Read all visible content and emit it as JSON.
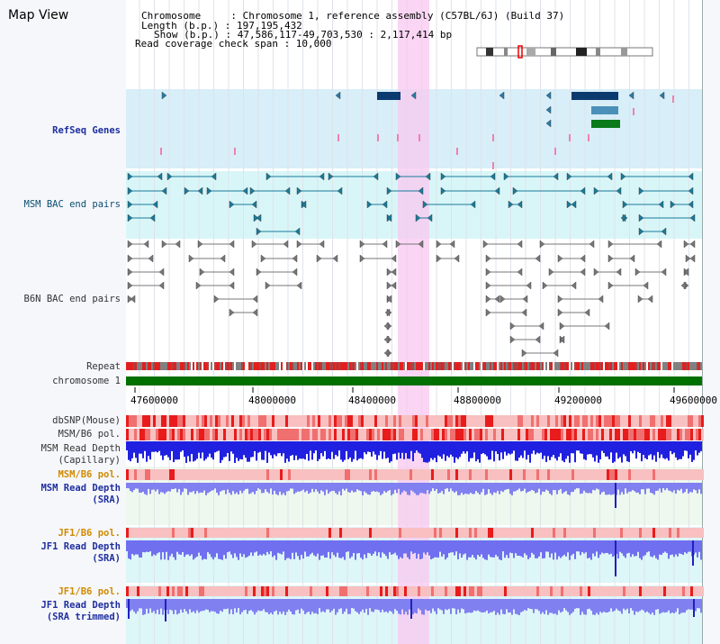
{
  "title": "Map View",
  "info": {
    "line1": "Chromosome     : Chromosome 1, reference assembly (C57BL/6J) (Build 37)",
    "line2": "Length (b.p.) : 197,195,432",
    "line3": "Show (b.p.) : 47,586,117-49,703,530 : 2,117,414 bp",
    "line4": "Read coverage check span : 10,000"
  },
  "tracks": {
    "refseq": "RefSeq Genes",
    "msm_bac": "MSM BAC end pairs",
    "b6n_bac": "B6N BAC end pairs",
    "repeat": "Repeat",
    "chromosome": "chromosome 1",
    "dbsnp": "dbSNP(Mouse)",
    "msm_b6_pol": "MSM/B6 pol.",
    "msm_read_cap_1": "MSM Read Depth",
    "msm_read_cap_2": "(Capillary)",
    "msm_b6_pol2": "MSM/B6 pol.",
    "msm_read_sra_1": "MSM Read Depth",
    "msm_read_sra_2": "(SRA)",
    "jf1_b6_pol": "JF1/B6 pol.",
    "jf1_read_sra_1": "JF1 Read Depth",
    "jf1_read_sra_2": "(SRA)",
    "jf1_b6_pol2": "JF1/B6 pol.",
    "jf1_read_trim_1": "JF1 Read Depth",
    "jf1_read_trim_2": "(SRA trimmed)"
  },
  "axis": {
    "ticks": [
      "47600000",
      "48000000",
      "48400000",
      "48800000",
      "49200000",
      "49600000"
    ]
  },
  "colors": {
    "highlight": "#f8c8f0",
    "refseq_bg": "#d8eef8",
    "msm_bg": "#d8f6f8",
    "gene": "#0a3a6e",
    "gene2": "#4a90b8",
    "gene3": "#0a7a1a",
    "chromosome_bar": "#007000",
    "depth_dark": "#2020e0",
    "depth_light": "#8080f0"
  }
}
